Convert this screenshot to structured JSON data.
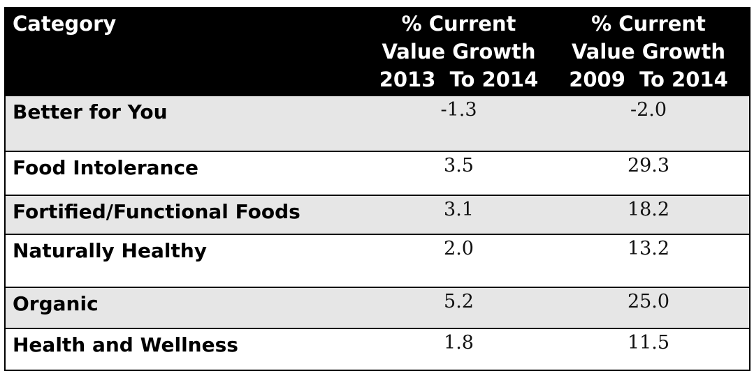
{
  "header": {
    "category": "Category",
    "col1": [
      "% Current",
      "Value Growth",
      "2013  To 2014"
    ],
    "col2": [
      "% Current",
      "Value Growth",
      "2009  To 2014"
    ]
  },
  "rows": [
    {
      "category": "Better for You",
      "growth_2013_2014": "-1.3",
      "growth_2009_2014": "-2.0"
    },
    {
      "category": "Food Intolerance",
      "growth_2013_2014": "3.5",
      "growth_2009_2014": "29.3"
    },
    {
      "category": "Fortified/Functional Foods",
      "growth_2013_2014": "3.1",
      "growth_2009_2014": "18.2"
    },
    {
      "category": "Naturally Healthy",
      "growth_2013_2014": "2.0",
      "growth_2009_2014": "13.2"
    },
    {
      "category": "Organic",
      "growth_2013_2014": "5.2",
      "growth_2009_2014": "25.0"
    },
    {
      "category": "Health and Wellness",
      "growth_2013_2014": "1.8",
      "growth_2009_2014": "11.5"
    }
  ],
  "colors": {
    "header_bg": "#000000",
    "header_text": "#ffffff",
    "shaded_row": "#e6e6e6"
  }
}
